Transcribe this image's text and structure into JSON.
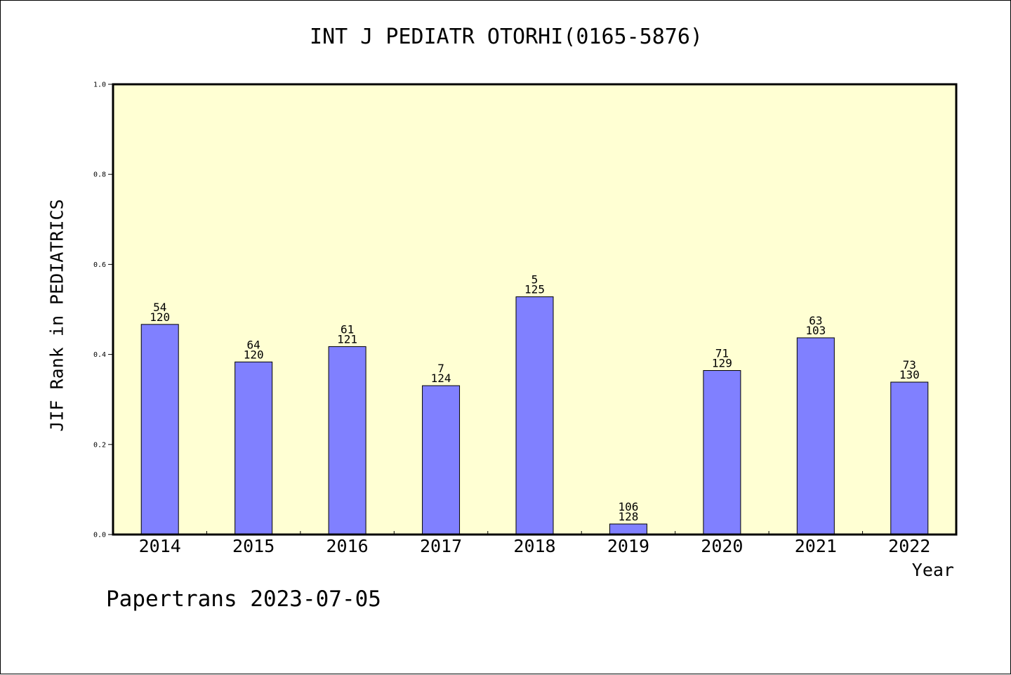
{
  "chart_data": {
    "type": "bar",
    "title": "INT J PEDIATR OTORHI(0165-5876)",
    "xlabel": "Year",
    "ylabel": "JIF Rank in PEDIATRICS",
    "categories": [
      "2014",
      "2015",
      "2016",
      "2017",
      "2018",
      "2019",
      "2020",
      "2021",
      "2022"
    ],
    "values": [
      0.4667,
      0.3833,
      0.4174,
      0.3306,
      0.528,
      0.0234,
      0.3643,
      0.4369,
      0.3385
    ],
    "labels_top": [
      "54",
      "64",
      "61",
      "7",
      "5",
      "106",
      "71",
      "63",
      "73"
    ],
    "labels_bottom": [
      "120",
      "120",
      "121",
      "124",
      "125",
      "128",
      "129",
      "103",
      "130"
    ],
    "ylim": [
      0,
      1.0
    ],
    "yticks": [
      "0.0",
      "0.2",
      "0.4",
      "0.6",
      "0.8",
      "1.0"
    ],
    "grid": false,
    "colors": {
      "plot_bg": "#ffffd3",
      "bar": "#8080ff",
      "axis": "#000000"
    }
  },
  "footer": "Papertrans 2023-07-05"
}
